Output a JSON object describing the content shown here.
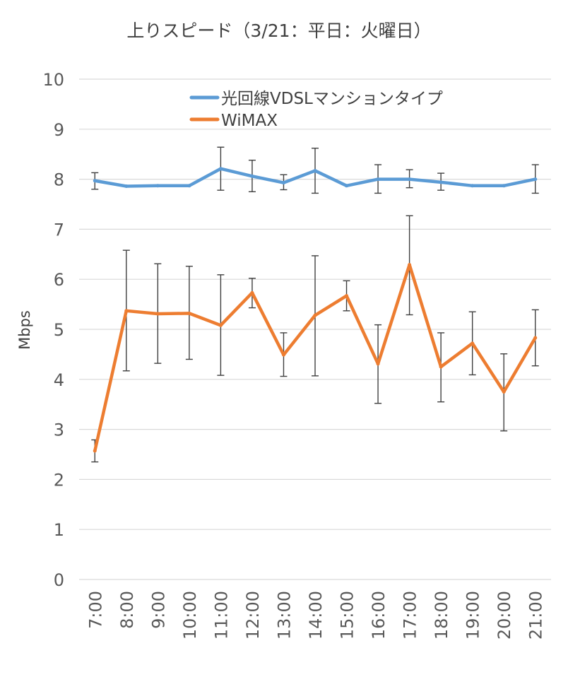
{
  "chart_data": {
    "type": "line",
    "title": "上りスピード（3/21：平日：火曜日）",
    "xlabel": "",
    "ylabel": "Mbps",
    "ylim": [
      0,
      10
    ],
    "yticks": [
      "0",
      "1",
      "2",
      "3",
      "4",
      "5",
      "6",
      "7",
      "8",
      "9",
      "10"
    ],
    "grid": true,
    "legend_position": "top-right",
    "categories": [
      "7:00",
      "8:00",
      "9:00",
      "10:00",
      "11:00",
      "12:00",
      "13:00",
      "14:00",
      "15:00",
      "16:00",
      "17:00",
      "18:00",
      "19:00",
      "20:00",
      "21:00"
    ],
    "series": [
      {
        "name": "光回線VDSLマンションタイプ",
        "color": "#5b9bd5",
        "values": [
          7.97,
          7.86,
          7.87,
          7.87,
          8.21,
          8.06,
          7.93,
          8.17,
          7.87,
          8.0,
          8.0,
          7.94,
          7.87,
          7.87,
          8.0
        ],
        "error_low": [
          7.8,
          null,
          null,
          null,
          7.78,
          7.75,
          7.79,
          7.72,
          null,
          7.72,
          7.83,
          7.78,
          null,
          null,
          7.72
        ],
        "error_high": [
          8.13,
          null,
          null,
          null,
          8.64,
          8.38,
          8.09,
          8.62,
          null,
          8.29,
          8.19,
          8.12,
          null,
          null,
          8.29
        ]
      },
      {
        "name": "WiMAX",
        "color": "#ed7d31",
        "values": [
          2.57,
          5.37,
          5.31,
          5.32,
          5.08,
          5.73,
          4.49,
          5.28,
          5.67,
          4.31,
          6.29,
          4.25,
          4.72,
          3.75,
          4.83
        ],
        "error_low": [
          2.35,
          4.17,
          4.32,
          4.4,
          4.08,
          5.43,
          4.06,
          4.07,
          5.37,
          3.52,
          5.29,
          3.55,
          4.09,
          2.97,
          4.27
        ],
        "error_high": [
          2.79,
          6.58,
          6.31,
          6.26,
          6.09,
          6.02,
          4.93,
          6.47,
          5.97,
          5.09,
          7.27,
          4.93,
          5.35,
          4.51,
          5.39
        ]
      }
    ]
  }
}
